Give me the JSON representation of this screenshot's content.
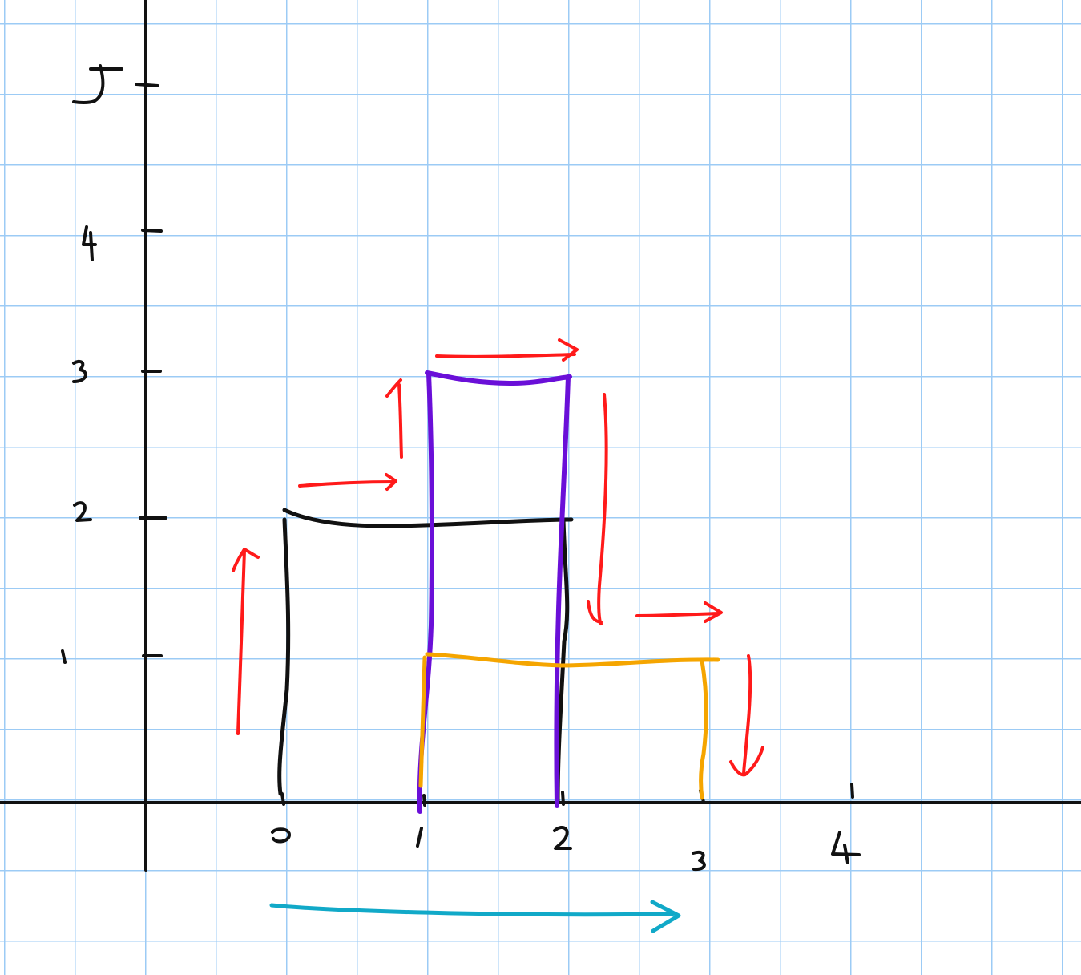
{
  "chart_data": {
    "type": "diagram",
    "description_free": true,
    "axes": {
      "x_tick_labels": [
        "0",
        "1",
        "2",
        "3",
        "4"
      ],
      "y_tick_labels": [
        "1",
        "2",
        "3",
        "4",
        "5"
      ],
      "grid": true,
      "grid_color": "#9ccbf5",
      "axis_color": "#111111"
    },
    "rectangles": [
      {
        "name": "black",
        "color": "#111111",
        "x0": 0,
        "x1": 2,
        "height": 2
      },
      {
        "name": "purple",
        "color": "#6a0fd8",
        "x0": 1,
        "x1": 2,
        "height": 3
      },
      {
        "name": "orange",
        "color": "#f5a500",
        "x0": 1,
        "x1": 3,
        "height": 1
      }
    ],
    "arrows": [
      {
        "color": "#ff1a1a",
        "direction": "up"
      },
      {
        "color": "#ff1a1a",
        "direction": "right"
      },
      {
        "color": "#ff1a1a",
        "direction": "up"
      },
      {
        "color": "#ff1a1a",
        "direction": "right"
      },
      {
        "color": "#ff1a1a",
        "direction": "down"
      },
      {
        "color": "#ff1a1a",
        "direction": "right"
      },
      {
        "color": "#ff1a1a",
        "direction": "down"
      },
      {
        "color": "#11a9c8",
        "direction": "right"
      }
    ]
  }
}
